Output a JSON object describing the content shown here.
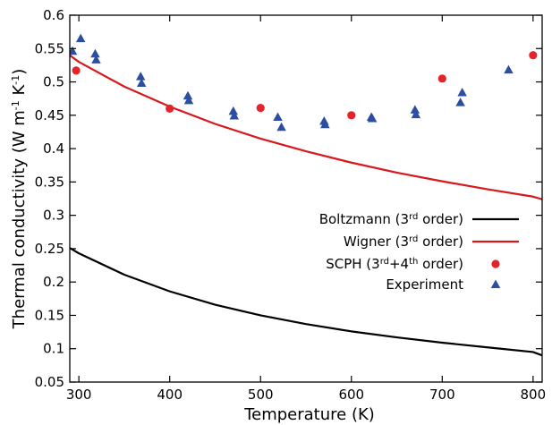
{
  "chart_data": {
    "type": "line",
    "xlabel": "Temperature (K)",
    "ylabel_parts": [
      "Thermal conductivity (W m",
      "-1",
      " K",
      "-1",
      ")"
    ],
    "xlim": [
      290,
      810
    ],
    "ylim": [
      0.05,
      0.6
    ],
    "x_ticks": [
      300,
      400,
      500,
      600,
      700,
      800
    ],
    "y_ticks": [
      0.05,
      0.1,
      0.15,
      0.2,
      0.25,
      0.3,
      0.35,
      0.4,
      0.45,
      0.5,
      0.55,
      0.6
    ],
    "grid": false,
    "legend_position": "bottom-right",
    "series": [
      {
        "key": "boltzmann",
        "label_parts": [
          "Boltzmann (3",
          "rd",
          " order)"
        ],
        "kind": "line",
        "color": "#000000",
        "x": [
          290,
          300,
          350,
          400,
          450,
          500,
          550,
          600,
          650,
          700,
          750,
          800,
          810
        ],
        "y": [
          0.251,
          0.243,
          0.211,
          0.186,
          0.166,
          0.15,
          0.137,
          0.126,
          0.117,
          0.109,
          0.102,
          0.095,
          0.09
        ]
      },
      {
        "key": "wigner",
        "label_parts": [
          "Wigner (3",
          "rd",
          " order)"
        ],
        "kind": "line",
        "color": "#d7191c",
        "x": [
          290,
          300,
          350,
          400,
          450,
          500,
          550,
          600,
          650,
          700,
          750,
          800,
          810
        ],
        "y": [
          0.54,
          0.53,
          0.493,
          0.463,
          0.437,
          0.415,
          0.396,
          0.379,
          0.364,
          0.351,
          0.339,
          0.328,
          0.324
        ]
      },
      {
        "key": "scph",
        "label_parts": [
          "SCPH (3",
          "rd",
          "+4",
          "th",
          " order)"
        ],
        "kind": "circle",
        "color": "#e3242b",
        "x": [
          297,
          400,
          500,
          600,
          700,
          800
        ],
        "y": [
          0.517,
          0.46,
          0.461,
          0.45,
          0.505,
          0.54
        ]
      },
      {
        "key": "experiment",
        "label_parts": [
          "Experiment"
        ],
        "kind": "triangle",
        "color": "#2b4ea2",
        "x": [
          293,
          302,
          318,
          319,
          368,
          369,
          420,
          421,
          470,
          471,
          519,
          523,
          570,
          571,
          622,
          623,
          670,
          671,
          720,
          722,
          773
        ],
        "y": [
          0.546,
          0.565,
          0.542,
          0.533,
          0.508,
          0.498,
          0.479,
          0.472,
          0.456,
          0.449,
          0.447,
          0.432,
          0.441,
          0.436,
          0.447,
          0.445,
          0.458,
          0.451,
          0.469,
          0.484,
          0.518
        ]
      }
    ]
  }
}
